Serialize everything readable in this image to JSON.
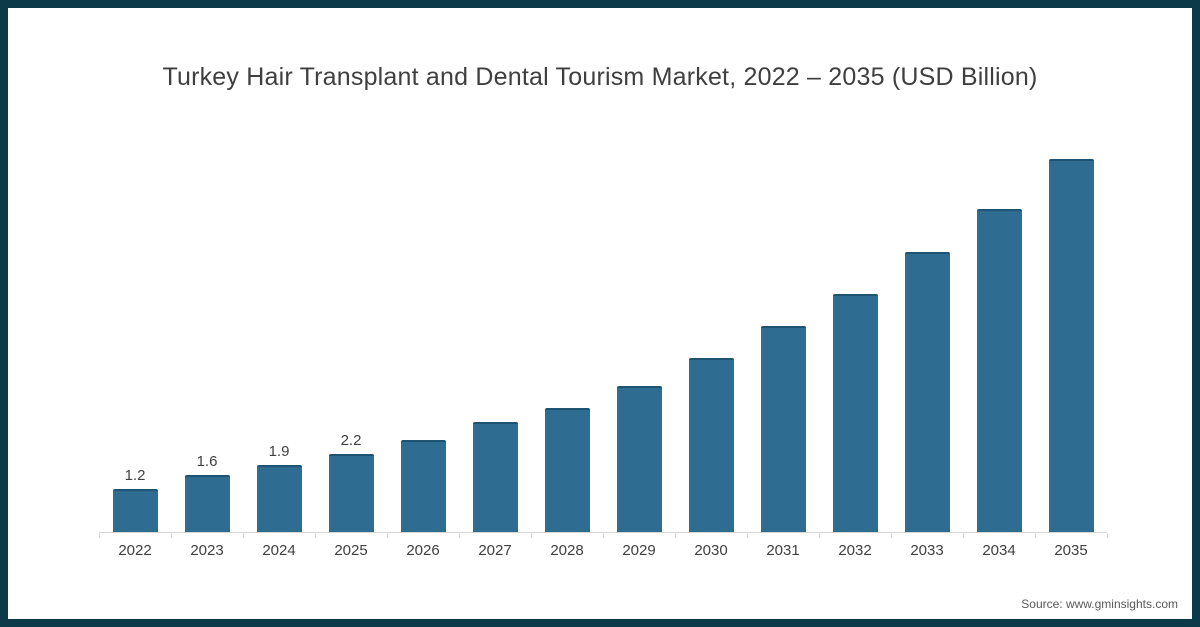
{
  "title": "Turkey Hair Transplant and Dental Tourism Market, 2022 – 2035 (USD Billion)",
  "source": "Source: www.gminsights.com",
  "colors": {
    "frame_border": "#0d3a49",
    "bar_fill": "#2e6d91",
    "bar_cap": "#1e5472",
    "axis_line": "#d6d6d6",
    "text": "#404040",
    "source_text": "#595959",
    "background": "#ffffff"
  },
  "chart_data": {
    "type": "bar",
    "title": "Turkey Hair Transplant and Dental Tourism Market, 2022 – 2035 (USD Billion)",
    "xlabel": "",
    "ylabel": "USD Billion",
    "categories": [
      "2022",
      "2023",
      "2024",
      "2025",
      "2026",
      "2027",
      "2028",
      "2029",
      "2030",
      "2031",
      "2032",
      "2033",
      "2034",
      "2035"
    ],
    "values": [
      1.2,
      1.6,
      1.9,
      2.2,
      2.6,
      3.1,
      3.5,
      4.1,
      4.9,
      5.8,
      6.7,
      7.9,
      9.1,
      10.5
    ],
    "data_labels": [
      "1.2",
      "1.6",
      "1.9",
      "2.2",
      null,
      null,
      null,
      null,
      null,
      null,
      null,
      null,
      null,
      null
    ],
    "ylim": [
      0,
      11
    ],
    "grid": false,
    "legend": false,
    "y_axis_shown": false,
    "annotation": "Source: www.gminsights.com"
  }
}
